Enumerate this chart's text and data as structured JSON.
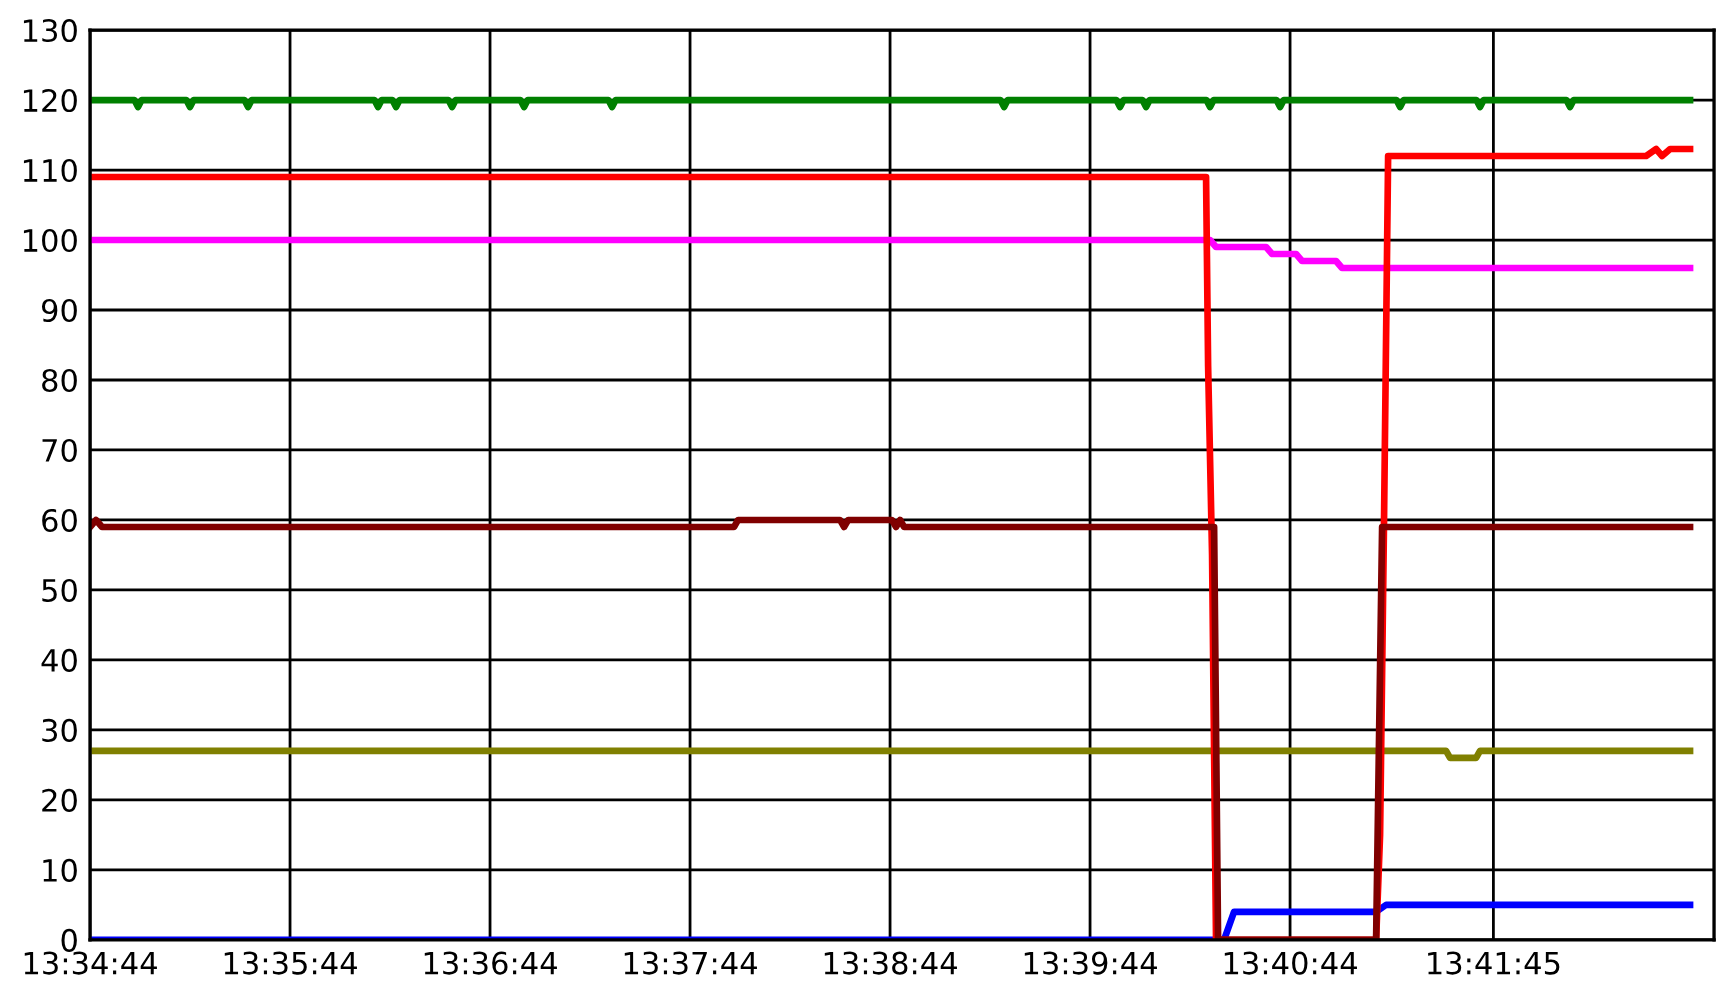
{
  "chart_data": {
    "type": "line",
    "xlim": [
      13.578889,
      13.71422
    ],
    "ylim": [
      0,
      130
    ],
    "xticks": [
      {
        "value": 13.578889,
        "label": "13:34:44"
      },
      {
        "value": 13.595556,
        "label": "13:35:44"
      },
      {
        "value": 13.612222,
        "label": "13:36:44"
      },
      {
        "value": 13.628889,
        "label": "13:37:44"
      },
      {
        "value": 13.645556,
        "label": "13:38:44"
      },
      {
        "value": 13.662222,
        "label": "13:39:44"
      },
      {
        "value": 13.678889,
        "label": "13:40:44"
      },
      {
        "value": 13.695833,
        "label": "13:41:45"
      }
    ],
    "yticks": [
      0,
      10,
      20,
      30,
      40,
      50,
      60,
      70,
      80,
      90,
      100,
      110,
      120,
      130
    ],
    "grid": true,
    "legend": false,
    "marker": "none",
    "line_style": "solid",
    "series": [
      {
        "color": "#008000",
        "x": [
          13.57889,
          13.58259,
          13.58289,
          13.58319,
          13.58692,
          13.58722,
          13.58752,
          13.59176,
          13.59206,
          13.59236,
          13.60259,
          13.60289,
          13.60319,
          13.60409,
          13.60439,
          13.60469,
          13.60876,
          13.60906,
          13.60936,
          13.61476,
          13.61506,
          13.61536,
          13.62209,
          13.62239,
          13.62269,
          13.65476,
          13.65506,
          13.65536,
          13.66442,
          13.66472,
          13.66502,
          13.66659,
          13.66689,
          13.66719,
          13.67192,
          13.67222,
          13.67252,
          13.67776,
          13.67806,
          13.67836,
          13.68776,
          13.68806,
          13.68836,
          13.69442,
          13.69472,
          13.69502,
          13.70192,
          13.70222,
          13.70252,
          13.71222
        ],
        "values": [
          120,
          120,
          119,
          120,
          120,
          119,
          120,
          120,
          119,
          120,
          120,
          119,
          120,
          120,
          119,
          120,
          120,
          119,
          120,
          120,
          119,
          120,
          120,
          119,
          120,
          120,
          119,
          120,
          120,
          119,
          120,
          120,
          119,
          120,
          120,
          119,
          120,
          120,
          119,
          120,
          120,
          119,
          120,
          120,
          119,
          120,
          120,
          119,
          120,
          120
        ]
      },
      {
        "color": "#ff00ff",
        "x": [
          13.57889,
          13.67222,
          13.67272,
          13.67689,
          13.67739,
          13.67939,
          13.67989,
          13.68272,
          13.68322,
          13.71222
        ],
        "values": [
          100,
          100,
          99,
          99,
          98,
          98,
          97,
          97,
          96,
          96
        ]
      },
      {
        "color": "#808000",
        "x": [
          13.57889,
          13.69189,
          13.69222,
          13.69439,
          13.69472,
          13.71222
        ],
        "values": [
          27,
          27,
          26,
          26,
          27,
          27
        ]
      },
      {
        "color": "#0000ff",
        "x": [
          13.57889,
          13.67339,
          13.67422,
          13.68606,
          13.68689,
          13.71222
        ],
        "values": [
          0,
          0,
          4,
          4,
          5,
          5
        ]
      },
      {
        "color": "#ff0000",
        "x": [
          13.57889,
          13.67189,
          13.67206,
          13.67239,
          13.67272,
          13.68606,
          13.68639,
          13.68672,
          13.68706,
          13.70856,
          13.70939,
          13.70989,
          13.71056,
          13.71222
        ],
        "values": [
          109,
          109,
          82,
          55,
          0,
          0,
          15,
          60,
          112,
          112,
          113,
          112,
          113,
          113
        ]
      },
      {
        "color": "#800000",
        "x": [
          13.57889,
          13.57939,
          13.57989,
          13.63256,
          13.63289,
          13.64139,
          13.64172,
          13.64206,
          13.64572,
          13.64606,
          13.64639,
          13.64672,
          13.67256,
          13.67289,
          13.68606,
          13.68656,
          13.71222
        ],
        "values": [
          59,
          60,
          59,
          59,
          60,
          60,
          59,
          60,
          60,
          59,
          60,
          59,
          59,
          0,
          0,
          59,
          59
        ]
      }
    ]
  }
}
